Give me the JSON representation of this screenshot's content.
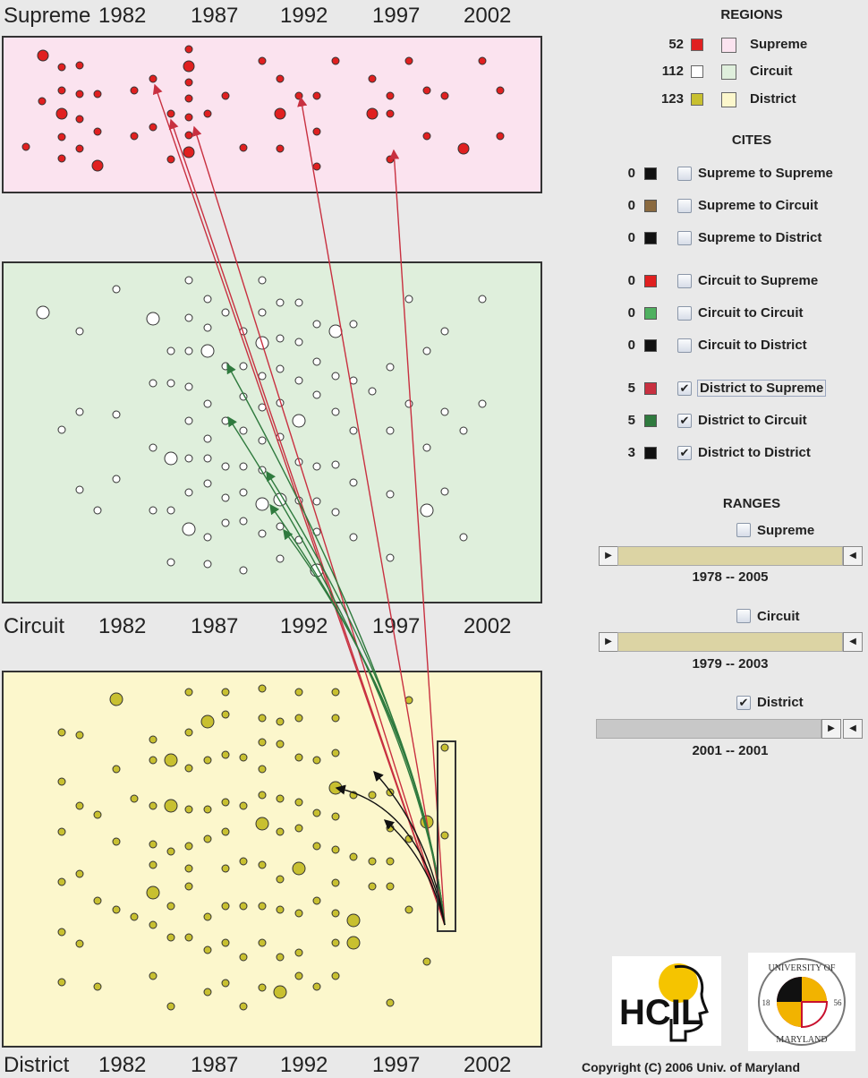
{
  "timeline": {
    "supreme_label": "Supreme",
    "circuit_label": "Circuit",
    "district_label": "District",
    "years": [
      "1982",
      "1987",
      "1992",
      "1997",
      "2002"
    ]
  },
  "regions": {
    "title": "REGIONS",
    "items": [
      {
        "count": "52",
        "color": "#e02020",
        "label": "Supreme",
        "bg": "#fbe3ef"
      },
      {
        "count": "112",
        "color": "#ffffff",
        "label": "Circuit",
        "bg": "#dfefdc"
      },
      {
        "count": "123",
        "color": "#c8c030",
        "label": "District",
        "bg": "#fcf7cc"
      }
    ]
  },
  "cites": {
    "title": "CITES",
    "items": [
      {
        "count": "0",
        "color": "#111111",
        "label": "Supreme to Supreme",
        "checked": false
      },
      {
        "count": "0",
        "color": "#8a6a40",
        "label": "Supreme to Circuit",
        "checked": false
      },
      {
        "count": "0",
        "color": "#111111",
        "label": "Supreme to District",
        "checked": false
      },
      {
        "count": "0",
        "color": "#e02020",
        "label": "Circuit to Supreme",
        "checked": false
      },
      {
        "count": "0",
        "color": "#4fb060",
        "label": "Circuit to Circuit",
        "checked": false
      },
      {
        "count": "0",
        "color": "#111111",
        "label": "Circuit to District",
        "checked": false
      },
      {
        "count": "5",
        "color": "#c83040",
        "label": "District to Supreme",
        "checked": true
      },
      {
        "count": "5",
        "color": "#2f7a3e",
        "label": "District to Circuit",
        "checked": true
      },
      {
        "count": "3",
        "color": "#111111",
        "label": "District to District",
        "checked": true
      }
    ]
  },
  "ranges": {
    "title": "RANGES",
    "items": [
      {
        "label": "Supreme",
        "checked": false,
        "range": "1978  --  2005",
        "active": true
      },
      {
        "label": "Circuit",
        "checked": false,
        "range": "1979  --  2003",
        "active": true
      },
      {
        "label": "District",
        "checked": true,
        "range": "2001  --  2001",
        "active": false
      }
    ]
  },
  "logos": {
    "hcil": "HCIL",
    "umd_top": "UNIVERSITY OF",
    "umd_bottom": "MARYLAND",
    "umd_left": "18",
    "umd_right": "56"
  },
  "copyright": "Copyright (C) 2006   Univ. of Maryland",
  "colors": {
    "supreme_dot": "#e02020",
    "circuit_dot": "#ffffff",
    "district_dot": "#c8c030",
    "supreme_bg": "#fbe3ef",
    "circuit_bg": "#dfefdc",
    "district_bg": "#fcf7cc",
    "cite_supreme": "#c83040",
    "cite_circuit": "#2f7a3e",
    "cite_district": "#111111"
  }
}
